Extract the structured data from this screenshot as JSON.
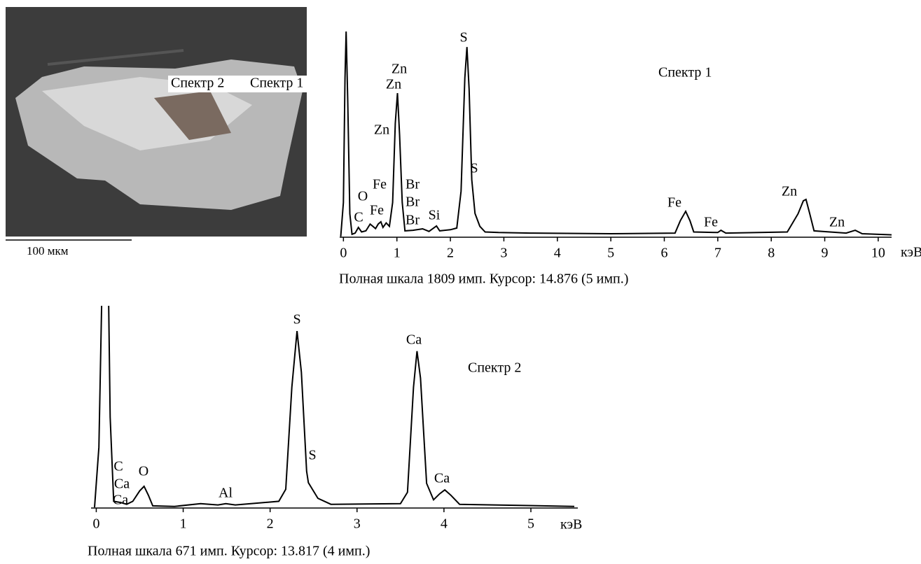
{
  "image": {
    "labels": [
      "Спектр 2",
      "Спектр 1"
    ],
    "scale_bar": "100 мкм"
  },
  "chart_data": [
    {
      "type": "line",
      "title": "Спектр 1",
      "x_label": "кэВ",
      "caption": "Полная шкала 1809 имп. Курсор: 14.876 (5 имп.)",
      "color": "#000000",
      "xlim": [
        -0.07,
        10.25
      ],
      "ylim": [
        0,
        1809
      ],
      "xticks": [
        0,
        1,
        2,
        3,
        4,
        5,
        6,
        7,
        8,
        9,
        10
      ],
      "x": [
        -0.05,
        0.0,
        0.03,
        0.05,
        0.08,
        0.12,
        0.16,
        0.22,
        0.28,
        0.34,
        0.42,
        0.5,
        0.55,
        0.6,
        0.65,
        0.7,
        0.74,
        0.8,
        0.86,
        0.92,
        0.97,
        1.01,
        1.05,
        1.1,
        1.15,
        1.3,
        1.48,
        1.6,
        1.74,
        1.8,
        2.0,
        2.12,
        2.2,
        2.27,
        2.31,
        2.35,
        2.4,
        2.46,
        2.55,
        2.65,
        2.9,
        3.5,
        5.0,
        6.2,
        6.3,
        6.4,
        6.48,
        6.55,
        7.0,
        7.06,
        7.15,
        8.3,
        8.5,
        8.6,
        8.65,
        8.72,
        8.8,
        9.4,
        9.57,
        9.7,
        10.25
      ],
      "values": [
        0,
        300,
        1400,
        1809,
        1200,
        200,
        20,
        30,
        80,
        40,
        50,
        110,
        90,
        70,
        110,
        130,
        80,
        120,
        90,
        300,
        1000,
        1265,
        900,
        300,
        50,
        55,
        68,
        45,
        93,
        50,
        60,
        75,
        400,
        1400,
        1672,
        1300,
        500,
        204,
        90,
        40,
        35,
        30,
        25,
        30,
        140,
        222,
        140,
        40,
        35,
        55,
        30,
        40,
        200,
        315,
        327,
        200,
        50,
        30,
        55,
        25,
        15
      ],
      "annotations": [
        "S",
        "Zn",
        "Zn",
        "Zn",
        "S",
        "Fe",
        "O",
        "Fe",
        "C",
        "Br",
        "Br",
        "Br",
        "Si",
        "Fe",
        "Fe",
        "Zn",
        "Zn"
      ]
    },
    {
      "type": "line",
      "title": "Спектр 2",
      "x_label": "кэВ",
      "caption": "Полная шкала 671 имп. Курсор: 13.817 (4 имп.)",
      "color": "#000000",
      "xlim": [
        -0.06,
        5.54
      ],
      "ylim": [
        0,
        671
      ],
      "xticks": [
        0,
        1,
        2,
        3,
        4,
        5
      ],
      "x": [
        -0.02,
        0.03,
        0.08,
        0.13,
        0.16,
        0.2,
        0.28,
        0.35,
        0.42,
        0.5,
        0.55,
        0.6,
        0.65,
        0.9,
        1.2,
        1.4,
        1.49,
        1.6,
        2.1,
        2.18,
        2.25,
        2.31,
        2.36,
        2.42,
        2.44,
        2.55,
        2.7,
        3.5,
        3.58,
        3.65,
        3.69,
        3.73,
        3.8,
        3.88,
        3.95,
        4.01,
        4.08,
        4.18,
        5.5
      ],
      "values": [
        0,
        200,
        950,
        950,
        300,
        20,
        16,
        10,
        20,
        55,
        70,
        40,
        5,
        3,
        12,
        8,
        12,
        8,
        20,
        60,
        400,
        587,
        450,
        120,
        82,
        30,
        10,
        12,
        50,
        400,
        520,
        430,
        80,
        25,
        45,
        58,
        40,
        10,
        3
      ],
      "annotations": [
        "S",
        "S",
        "Ca",
        "Ca",
        "C",
        "Ca",
        "Ca",
        "O",
        "Al"
      ]
    }
  ]
}
